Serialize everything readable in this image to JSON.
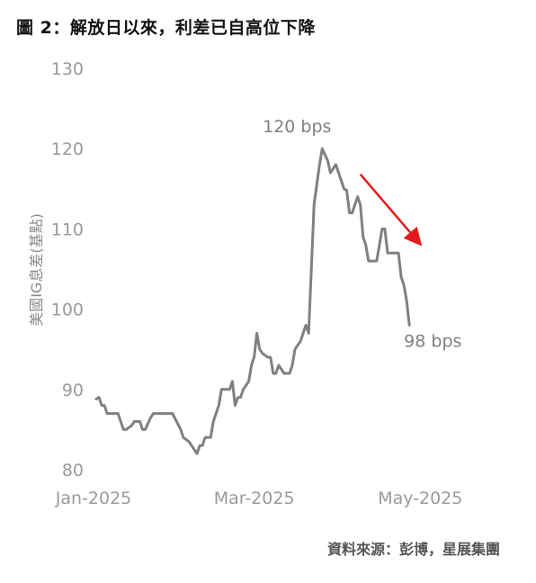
{
  "figure": {
    "title": "圖 2：解放日以來，利差已自高位下降",
    "source": "資料來源：彭博，星展集團"
  },
  "colors": {
    "line": "#808080",
    "arrow": "#e31a1c",
    "tick": "#9a9a9a"
  },
  "chart_data": {
    "type": "line",
    "title": "圖 2：解放日以來，利差已自高位下降",
    "ylabel": "美國IG息差(基點)",
    "xlabel": "",
    "ylim": [
      80,
      130
    ],
    "yticks": [
      80,
      90,
      100,
      110,
      120,
      130
    ],
    "xlim": [
      "2025-01-01",
      "2025-05-27"
    ],
    "xticks": [
      {
        "date": "2025-01-01",
        "label": "Jan-2025"
      },
      {
        "date": "2025-03-01",
        "label": "Mar-2025"
      },
      {
        "date": "2025-05-01",
        "label": "May-2025"
      }
    ],
    "grid": false,
    "legend": "none",
    "series": [
      {
        "points": [
          [
            "2025-01-02",
            88.8
          ],
          [
            "2025-01-03",
            89.0
          ],
          [
            "2025-01-04",
            88.0
          ],
          [
            "2025-01-05",
            88.0
          ],
          [
            "2025-01-06",
            87.0
          ],
          [
            "2025-01-08",
            87.0
          ],
          [
            "2025-01-10",
            87.0
          ],
          [
            "2025-01-12",
            85.0
          ],
          [
            "2025-01-13",
            85.0
          ],
          [
            "2025-01-15",
            85.5
          ],
          [
            "2025-01-16",
            86.0
          ],
          [
            "2025-01-18",
            86.0
          ],
          [
            "2025-01-19",
            85.0
          ],
          [
            "2025-01-20",
            85.0
          ],
          [
            "2025-01-22",
            86.5
          ],
          [
            "2025-01-23",
            87.0
          ],
          [
            "2025-01-26",
            87.0
          ],
          [
            "2025-01-30",
            87.0
          ],
          [
            "2025-02-02",
            85.0
          ],
          [
            "2025-02-03",
            84.0
          ],
          [
            "2025-02-05",
            83.5
          ],
          [
            "2025-02-06",
            83.0
          ],
          [
            "2025-02-08",
            82.0
          ],
          [
            "2025-02-09",
            83.0
          ],
          [
            "2025-02-10",
            83.0
          ],
          [
            "2025-02-11",
            84.0
          ],
          [
            "2025-02-13",
            84.0
          ],
          [
            "2025-02-14",
            86.0
          ],
          [
            "2025-02-16",
            88.0
          ],
          [
            "2025-02-17",
            90.0
          ],
          [
            "2025-02-19",
            90.0
          ],
          [
            "2025-02-20",
            90.0
          ],
          [
            "2025-02-21",
            91.0
          ],
          [
            "2025-02-22",
            88.0
          ],
          [
            "2025-02-23",
            89.0
          ],
          [
            "2025-02-24",
            89.0
          ],
          [
            "2025-02-25",
            90.0
          ],
          [
            "2025-02-27",
            91.0
          ],
          [
            "2025-02-28",
            93.0
          ],
          [
            "2025-03-01",
            94.0
          ],
          [
            "2025-03-02",
            97.0
          ],
          [
            "2025-03-03",
            95.0
          ],
          [
            "2025-03-04",
            94.5
          ],
          [
            "2025-03-06",
            94.0
          ],
          [
            "2025-03-07",
            94.0
          ],
          [
            "2025-03-08",
            92.0
          ],
          [
            "2025-03-09",
            92.0
          ],
          [
            "2025-03-10",
            93.0
          ],
          [
            "2025-03-12",
            92.0
          ],
          [
            "2025-03-14",
            92.0
          ],
          [
            "2025-03-15",
            93.0
          ],
          [
            "2025-03-16",
            95.0
          ],
          [
            "2025-03-18",
            96.0
          ],
          [
            "2025-03-20",
            98.0
          ],
          [
            "2025-03-21",
            97.0
          ],
          [
            "2025-03-23",
            113.0
          ],
          [
            "2025-03-25",
            118.0
          ],
          [
            "2025-03-26",
            120.0
          ],
          [
            "2025-03-28",
            118.5
          ],
          [
            "2025-03-29",
            117.0
          ],
          [
            "2025-03-30",
            117.5
          ],
          [
            "2025-03-31",
            118.0
          ],
          [
            "2025-04-01",
            117.0
          ],
          [
            "2025-04-02",
            116.0
          ],
          [
            "2025-04-03",
            115.0
          ],
          [
            "2025-04-04",
            114.8
          ],
          [
            "2025-04-05",
            112.0
          ],
          [
            "2025-04-06",
            112.0
          ],
          [
            "2025-04-07",
            113.0
          ],
          [
            "2025-04-08",
            114.0
          ],
          [
            "2025-04-09",
            113.0
          ],
          [
            "2025-04-10",
            109.0
          ],
          [
            "2025-04-11",
            108.0
          ],
          [
            "2025-04-12",
            106.0
          ],
          [
            "2025-04-14",
            106.0
          ],
          [
            "2025-04-15",
            106.0
          ],
          [
            "2025-04-16",
            108.0
          ],
          [
            "2025-04-17",
            110.0
          ],
          [
            "2025-04-18",
            110.0
          ],
          [
            "2025-04-19",
            107.0
          ],
          [
            "2025-04-20",
            107.0
          ],
          [
            "2025-04-22",
            107.0
          ],
          [
            "2025-04-23",
            107.0
          ],
          [
            "2025-04-24",
            104.0
          ],
          [
            "2025-04-25",
            103.0
          ],
          [
            "2025-04-26",
            101.0
          ],
          [
            "2025-04-27",
            98.0
          ]
        ]
      }
    ],
    "annotations": [
      {
        "text": "120 bps",
        "date": "2025-03-26",
        "value": 120
      },
      {
        "text": "98 bps",
        "date": "2025-04-27",
        "value": 98
      }
    ],
    "arrow": {
      "direction": "down-right",
      "from": [
        "2025-04-09",
        116.8
      ],
      "to": [
        "2025-04-30",
        108.5
      ]
    }
  }
}
